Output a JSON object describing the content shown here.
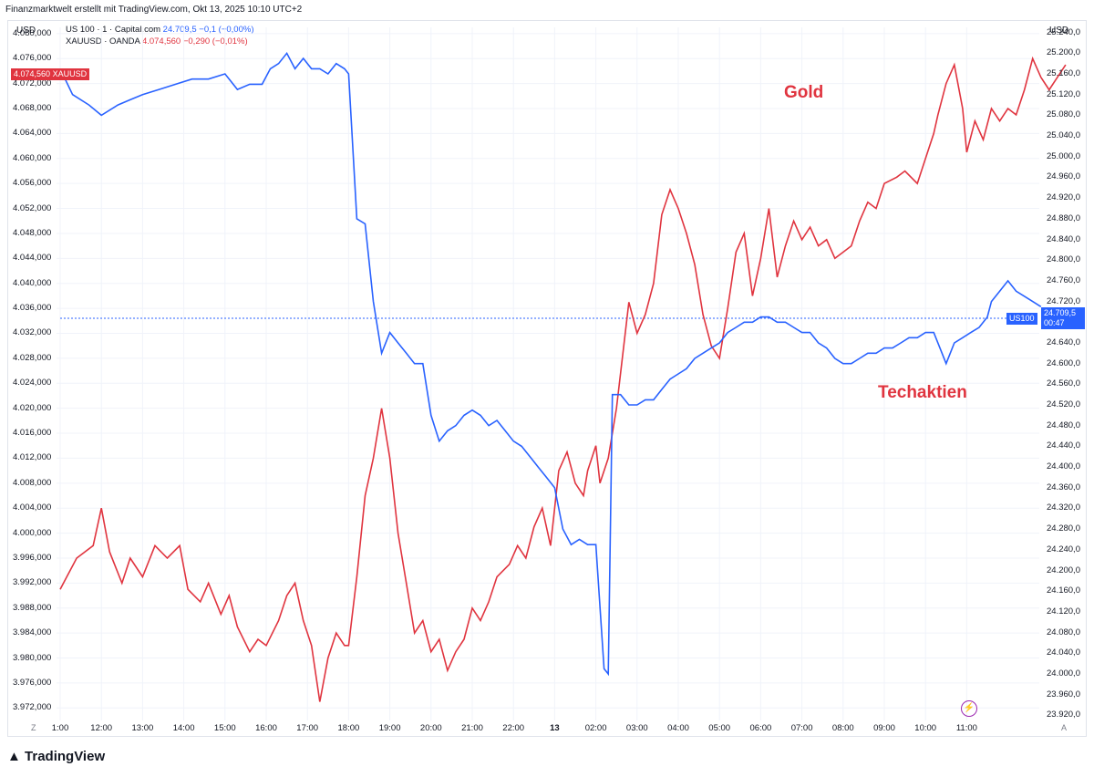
{
  "header": {
    "title": "Finanzmarktwelt erstellt mit TradingView.com, Okt 13, 2025 10:10 UTC+2"
  },
  "axes": {
    "left_unit": "USD",
    "right_unit": "USD"
  },
  "legend": {
    "us100_name": "US 100 · 1 · Capital.com",
    "us100_value": "24.709,5",
    "us100_change": "−0,1 (−0,00%)",
    "xau_name": "XAUUSD · OANDA",
    "xau_value": "4.074,560",
    "xau_change": "−0,290 (−0,01%)"
  },
  "price_tags": {
    "xau_value": "4.074,560",
    "xau_symbol": "XAUUSD",
    "us100_symbol": "US100",
    "us100_value": "24.709,5",
    "us100_countdown": "00:47",
    "right_hidden": "24.720,0"
  },
  "annotations": {
    "gold": "Gold",
    "tech": "Techaktien"
  },
  "branding": {
    "logo": "TradingView"
  },
  "corner_labels": {
    "left": "Z",
    "right": "A"
  },
  "colors": {
    "gold_line": "#e0343f",
    "us100_line": "#2962ff",
    "grid": "#f0f3fa"
  },
  "chart_data": {
    "type": "line",
    "x_ticks": [
      "1:00",
      "12:00",
      "13:00",
      "14:00",
      "15:00",
      "16:00",
      "17:00",
      "18:00",
      "19:00",
      "20:00",
      "21:00",
      "22:00",
      "13",
      "02:00",
      "03:00",
      "04:00",
      "05:00",
      "06:00",
      "07:00",
      "08:00",
      "09:00",
      "10:00",
      "11:00"
    ],
    "left_axis": {
      "label": "USD",
      "ylim": [
        3970,
        4081
      ],
      "ticks": [
        "4.080,000",
        "4.076,000",
        "4.072,000",
        "4.068,000",
        "4.064,000",
        "4.060,000",
        "4.056,000",
        "4.052,000",
        "4.048,000",
        "4.044,000",
        "4.040,000",
        "4.036,000",
        "4.032,000",
        "4.028,000",
        "4.024,000",
        "4.020,000",
        "4.016,000",
        "4.012,000",
        "4.008,000",
        "4.004,000",
        "4.000,000",
        "3.996,000",
        "3.992,000",
        "3.988,000",
        "3.984,000",
        "3.980,000",
        "3.976,000",
        "3.972,000"
      ]
    },
    "right_axis": {
      "label": "USD",
      "ylim": [
        23910,
        25250
      ],
      "ticks": [
        "25.240,0",
        "25.200,0",
        "25.160,0",
        "25.120,0",
        "25.080,0",
        "25.040,0",
        "25.000,0",
        "24.960,0",
        "24.920,0",
        "24.880,0",
        "24.840,0",
        "24.800,0",
        "24.760,0",
        "24.720,0",
        "24.680,0",
        "24.640,0",
        "24.600,0",
        "24.560,0",
        "24.520,0",
        "24.480,0",
        "24.440,0",
        "24.400,0",
        "24.360,0",
        "24.320,0",
        "24.280,0",
        "24.240,0",
        "24.200,0",
        "24.160,0",
        "24.120,0",
        "24.080,0",
        "24.040,0",
        "24.000,0",
        "23.960,0",
        "23.920,0"
      ]
    },
    "series": [
      {
        "name": "XAUUSD · OANDA",
        "axis": "left",
        "color": "#e0343f",
        "points": [
          [
            0.0,
            3991
          ],
          [
            0.4,
            3996
          ],
          [
            0.8,
            3998
          ],
          [
            1.0,
            4004
          ],
          [
            1.2,
            3997
          ],
          [
            1.5,
            3992
          ],
          [
            1.7,
            3996
          ],
          [
            2.0,
            3993
          ],
          [
            2.3,
            3998
          ],
          [
            2.6,
            3996
          ],
          [
            2.9,
            3998
          ],
          [
            3.1,
            3991
          ],
          [
            3.4,
            3989
          ],
          [
            3.6,
            3992
          ],
          [
            3.9,
            3987
          ],
          [
            4.1,
            3990
          ],
          [
            4.3,
            3985
          ],
          [
            4.6,
            3981
          ],
          [
            4.8,
            3983
          ],
          [
            5.0,
            3982
          ],
          [
            5.3,
            3986
          ],
          [
            5.5,
            3990
          ],
          [
            5.7,
            3992
          ],
          [
            5.9,
            3986
          ],
          [
            6.1,
            3982
          ],
          [
            6.3,
            3973
          ],
          [
            6.5,
            3980
          ],
          [
            6.7,
            3984
          ],
          [
            6.9,
            3982
          ],
          [
            7.0,
            3982
          ],
          [
            7.2,
            3993
          ],
          [
            7.4,
            4006
          ],
          [
            7.6,
            4012
          ],
          [
            7.8,
            4020
          ],
          [
            8.0,
            4012
          ],
          [
            8.2,
            4000
          ],
          [
            8.4,
            3992
          ],
          [
            8.6,
            3984
          ],
          [
            8.8,
            3986
          ],
          [
            9.0,
            3981
          ],
          [
            9.2,
            3983
          ],
          [
            9.4,
            3978
          ],
          [
            9.6,
            3981
          ],
          [
            9.8,
            3983
          ],
          [
            10.0,
            3988
          ],
          [
            10.2,
            3986
          ],
          [
            10.4,
            3989
          ],
          [
            10.6,
            3993
          ],
          [
            10.9,
            3995
          ],
          [
            11.1,
            3998
          ],
          [
            11.3,
            3996
          ],
          [
            11.5,
            4001
          ],
          [
            11.7,
            4004
          ],
          [
            11.9,
            3998
          ],
          [
            12.1,
            4010
          ],
          [
            12.3,
            4013
          ],
          [
            12.5,
            4008
          ],
          [
            12.7,
            4006
          ],
          [
            12.8,
            4010
          ],
          [
            13.0,
            4014
          ],
          [
            13.1,
            4008
          ],
          [
            13.3,
            4012
          ],
          [
            13.5,
            4020
          ],
          [
            13.8,
            4037
          ],
          [
            14.0,
            4032
          ],
          [
            14.2,
            4035
          ],
          [
            14.4,
            4040
          ],
          [
            14.6,
            4051
          ],
          [
            14.8,
            4055
          ],
          [
            15.0,
            4052
          ],
          [
            15.2,
            4048
          ],
          [
            15.4,
            4043
          ],
          [
            15.6,
            4035
          ],
          [
            15.8,
            4030
          ],
          [
            16.0,
            4028
          ],
          [
            16.2,
            4036
          ],
          [
            16.4,
            4045
          ],
          [
            16.6,
            4048
          ],
          [
            16.8,
            4038
          ],
          [
            17.0,
            4044
          ],
          [
            17.2,
            4052
          ],
          [
            17.4,
            4041
          ],
          [
            17.6,
            4046
          ],
          [
            17.8,
            4050
          ],
          [
            18.0,
            4047
          ],
          [
            18.2,
            4049
          ],
          [
            18.4,
            4046
          ],
          [
            18.6,
            4047
          ],
          [
            18.8,
            4044
          ],
          [
            19.0,
            4045
          ],
          [
            19.2,
            4046
          ],
          [
            19.4,
            4050
          ],
          [
            19.6,
            4053
          ],
          [
            19.8,
            4052
          ],
          [
            20.0,
            4056
          ],
          [
            20.3,
            4057
          ],
          [
            20.5,
            4058
          ],
          [
            20.8,
            4056
          ],
          [
            21.0,
            4060
          ],
          [
            21.2,
            4064
          ],
          [
            21.3,
            4067
          ],
          [
            21.5,
            4072
          ],
          [
            21.7,
            4075
          ],
          [
            21.9,
            4068
          ],
          [
            22.0,
            4061
          ],
          [
            22.2,
            4066
          ],
          [
            22.4,
            4063
          ],
          [
            22.6,
            4068
          ],
          [
            22.8,
            4066
          ],
          [
            23.0,
            4068
          ],
          [
            23.2,
            4067
          ],
          [
            23.4,
            4071
          ],
          [
            23.6,
            4076
          ],
          [
            23.8,
            4073
          ],
          [
            24.0,
            4071
          ],
          [
            24.2,
            4073
          ],
          [
            24.4,
            4075
          ]
        ]
      },
      {
        "name": "US 100 · 1 · Capital.com",
        "axis": "right",
        "color": "#2962ff",
        "points": [
          [
            0.0,
            25170
          ],
          [
            0.3,
            25120
          ],
          [
            0.7,
            25100
          ],
          [
            1.0,
            25080
          ],
          [
            1.4,
            25100
          ],
          [
            1.7,
            25110
          ],
          [
            2.0,
            25120
          ],
          [
            2.4,
            25130
          ],
          [
            2.8,
            25140
          ],
          [
            3.2,
            25150
          ],
          [
            3.6,
            25150
          ],
          [
            4.0,
            25160
          ],
          [
            4.3,
            25130
          ],
          [
            4.6,
            25140
          ],
          [
            4.9,
            25140
          ],
          [
            5.1,
            25170
          ],
          [
            5.3,
            25180
          ],
          [
            5.5,
            25200
          ],
          [
            5.7,
            25170
          ],
          [
            5.9,
            25190
          ],
          [
            6.1,
            25170
          ],
          [
            6.3,
            25170
          ],
          [
            6.5,
            25160
          ],
          [
            6.7,
            25180
          ],
          [
            6.9,
            25170
          ],
          [
            7.0,
            25160
          ],
          [
            7.2,
            24880
          ],
          [
            7.4,
            24870
          ],
          [
            7.6,
            24720
          ],
          [
            7.8,
            24620
          ],
          [
            8.0,
            24660
          ],
          [
            8.2,
            24640
          ],
          [
            8.4,
            24620
          ],
          [
            8.6,
            24600
          ],
          [
            8.8,
            24600
          ],
          [
            9.0,
            24500
          ],
          [
            9.2,
            24450
          ],
          [
            9.4,
            24470
          ],
          [
            9.6,
            24480
          ],
          [
            9.8,
            24500
          ],
          [
            10.0,
            24510
          ],
          [
            10.2,
            24500
          ],
          [
            10.4,
            24480
          ],
          [
            10.6,
            24490
          ],
          [
            10.8,
            24470
          ],
          [
            11.0,
            24450
          ],
          [
            11.2,
            24440
          ],
          [
            11.4,
            24420
          ],
          [
            11.6,
            24400
          ],
          [
            11.8,
            24380
          ],
          [
            12.0,
            24360
          ],
          [
            12.2,
            24280
          ],
          [
            12.4,
            24250
          ],
          [
            12.6,
            24260
          ],
          [
            12.8,
            24250
          ],
          [
            13.0,
            24250
          ],
          [
            13.2,
            24010
          ],
          [
            13.3,
            24000
          ],
          [
            13.4,
            24540
          ],
          [
            13.6,
            24540
          ],
          [
            13.8,
            24520
          ],
          [
            14.0,
            24520
          ],
          [
            14.2,
            24530
          ],
          [
            14.4,
            24530
          ],
          [
            14.6,
            24550
          ],
          [
            14.8,
            24570
          ],
          [
            15.0,
            24580
          ],
          [
            15.2,
            24590
          ],
          [
            15.4,
            24610
          ],
          [
            15.6,
            24620
          ],
          [
            15.8,
            24630
          ],
          [
            16.0,
            24640
          ],
          [
            16.2,
            24660
          ],
          [
            16.4,
            24670
          ],
          [
            16.6,
            24680
          ],
          [
            16.8,
            24680
          ],
          [
            17.0,
            24690
          ],
          [
            17.2,
            24690
          ],
          [
            17.4,
            24680
          ],
          [
            17.6,
            24680
          ],
          [
            17.8,
            24670
          ],
          [
            18.0,
            24660
          ],
          [
            18.2,
            24660
          ],
          [
            18.4,
            24640
          ],
          [
            18.6,
            24630
          ],
          [
            18.8,
            24610
          ],
          [
            19.0,
            24600
          ],
          [
            19.2,
            24600
          ],
          [
            19.4,
            24610
          ],
          [
            19.6,
            24620
          ],
          [
            19.8,
            24620
          ],
          [
            20.0,
            24630
          ],
          [
            20.2,
            24630
          ],
          [
            20.4,
            24640
          ],
          [
            20.6,
            24650
          ],
          [
            20.8,
            24650
          ],
          [
            21.0,
            24660
          ],
          [
            21.2,
            24660
          ],
          [
            21.4,
            24620
          ],
          [
            21.5,
            24600
          ],
          [
            21.7,
            24640
          ],
          [
            21.9,
            24650
          ],
          [
            22.1,
            24660
          ],
          [
            22.3,
            24670
          ],
          [
            22.5,
            24690
          ],
          [
            22.6,
            24720
          ],
          [
            22.8,
            24740
          ],
          [
            23.0,
            24760
          ],
          [
            23.2,
            24740
          ],
          [
            23.4,
            24730
          ],
          [
            23.6,
            24720
          ],
          [
            23.8,
            24710
          ]
        ]
      }
    ]
  }
}
